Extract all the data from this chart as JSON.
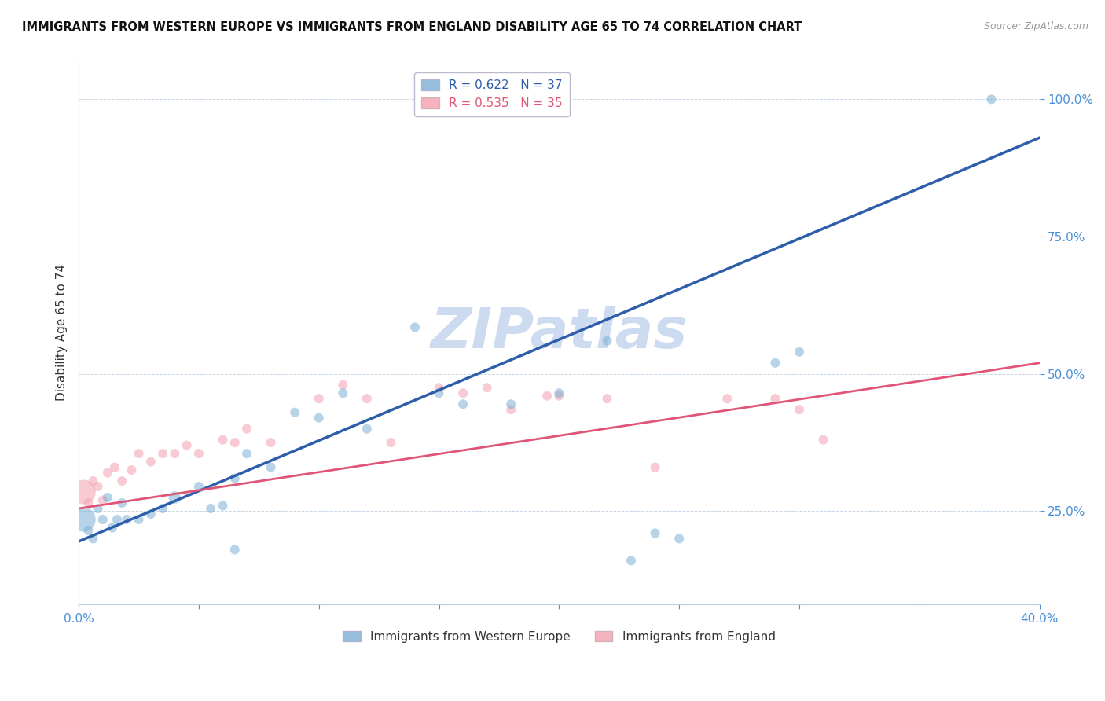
{
  "title": "IMMIGRANTS FROM WESTERN EUROPE VS IMMIGRANTS FROM ENGLAND DISABILITY AGE 65 TO 74 CORRELATION CHART",
  "source": "Source: ZipAtlas.com",
  "ylabel_label": "Disability Age 65 to 74",
  "xmin": 0.0,
  "xmax": 0.4,
  "ymin": 0.08,
  "ymax": 1.07,
  "yticks": [
    0.25,
    0.5,
    0.75,
    1.0
  ],
  "ytick_labels": [
    "25.0%",
    "50.0%",
    "75.0%",
    "100.0%"
  ],
  "R_blue": 0.622,
  "N_blue": 37,
  "R_pink": 0.535,
  "N_pink": 35,
  "legend_label_blue": "Immigrants from Western Europe",
  "legend_label_pink": "Immigrants from England",
  "blue_color": "#7BAFD4",
  "pink_color": "#F4A0B0",
  "blue_line_color": "#2E5EAA",
  "pink_line_color": "#E05575",
  "tick_color": "#4A90D9",
  "watermark_color": "#C8D8F0",
  "blue_scatter_x": [
    0.29,
    0.3,
    0.002,
    0.004,
    0.006,
    0.008,
    0.01,
    0.012,
    0.014,
    0.016,
    0.018,
    0.02,
    0.025,
    0.03,
    0.035,
    0.04,
    0.05,
    0.055,
    0.06,
    0.065,
    0.07,
    0.08,
    0.09,
    0.1,
    0.11,
    0.12,
    0.14,
    0.15,
    0.16,
    0.18,
    0.2,
    0.22,
    0.23,
    0.24,
    0.25,
    0.38,
    0.065
  ],
  "blue_scatter_y": [
    0.52,
    0.54,
    0.235,
    0.215,
    0.2,
    0.255,
    0.235,
    0.275,
    0.22,
    0.235,
    0.265,
    0.235,
    0.235,
    0.245,
    0.255,
    0.275,
    0.295,
    0.255,
    0.26,
    0.31,
    0.355,
    0.33,
    0.43,
    0.42,
    0.465,
    0.4,
    0.585,
    0.465,
    0.445,
    0.445,
    0.465,
    0.56,
    0.16,
    0.21,
    0.2,
    1.0,
    0.18
  ],
  "blue_scatter_sizes": [
    30,
    30,
    200,
    30,
    30,
    30,
    30,
    30,
    30,
    30,
    30,
    30,
    30,
    30,
    30,
    50,
    30,
    30,
    30,
    30,
    30,
    30,
    30,
    30,
    30,
    30,
    30,
    30,
    30,
    30,
    30,
    30,
    30,
    30,
    30,
    30,
    30
  ],
  "pink_scatter_x": [
    0.002,
    0.004,
    0.006,
    0.008,
    0.01,
    0.012,
    0.015,
    0.018,
    0.022,
    0.025,
    0.03,
    0.035,
    0.04,
    0.045,
    0.05,
    0.06,
    0.065,
    0.07,
    0.08,
    0.1,
    0.11,
    0.12,
    0.13,
    0.15,
    0.16,
    0.17,
    0.18,
    0.195,
    0.2,
    0.22,
    0.24,
    0.27,
    0.29,
    0.3,
    0.31
  ],
  "pink_scatter_y": [
    0.285,
    0.265,
    0.305,
    0.295,
    0.27,
    0.32,
    0.33,
    0.305,
    0.325,
    0.355,
    0.34,
    0.355,
    0.355,
    0.37,
    0.355,
    0.38,
    0.375,
    0.4,
    0.375,
    0.455,
    0.48,
    0.455,
    0.375,
    0.475,
    0.465,
    0.475,
    0.435,
    0.46,
    0.46,
    0.455,
    0.33,
    0.455,
    0.455,
    0.435,
    0.38
  ],
  "pink_scatter_sizes": [
    200,
    30,
    30,
    30,
    30,
    30,
    30,
    30,
    30,
    30,
    30,
    30,
    30,
    30,
    30,
    30,
    30,
    30,
    30,
    30,
    30,
    30,
    30,
    30,
    30,
    30,
    30,
    30,
    30,
    30,
    30,
    30,
    30,
    30,
    30
  ],
  "blue_line_x0": 0.0,
  "blue_line_y0": 0.195,
  "blue_line_x1": 0.4,
  "blue_line_y1": 0.93,
  "pink_line_x0": 0.0,
  "pink_line_y0": 0.255,
  "pink_line_x1": 0.4,
  "pink_line_y1": 0.52
}
